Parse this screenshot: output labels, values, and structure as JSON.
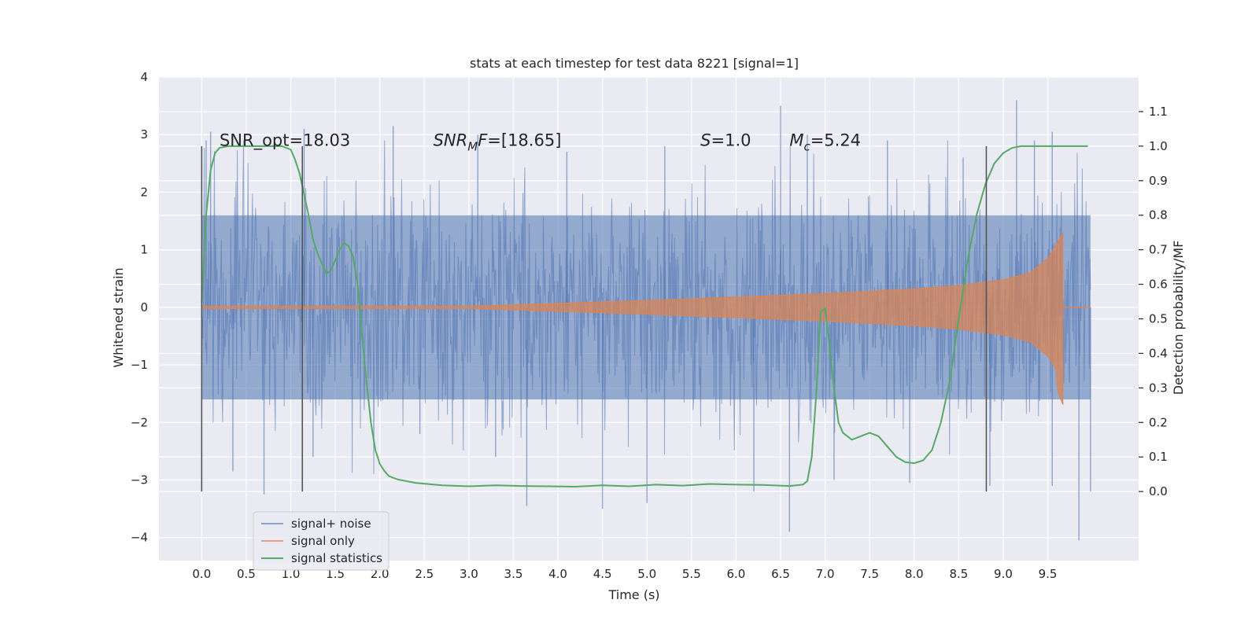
{
  "chart_data": {
    "type": "line",
    "title": "stats at each timestep for test data 8221 [signal=1]",
    "xlabel": "Time (s)",
    "ylabel": "Whitened strain",
    "y2label": "Detection probability/MF",
    "xlim": [
      -0.48,
      10.52
    ],
    "ylim": [
      -4.4,
      4.0
    ],
    "y2lim": [
      -0.2,
      1.2
    ],
    "xticks": [
      "0.0",
      "0.5",
      "1.0",
      "1.5",
      "2.0",
      "2.5",
      "3.0",
      "3.5",
      "4.0",
      "4.5",
      "5.0",
      "5.5",
      "6.0",
      "6.5",
      "7.0",
      "7.5",
      "8.0",
      "8.5",
      "9.0",
      "9.5"
    ],
    "yticks": [
      "−4",
      "−3",
      "−2",
      "−1",
      "0",
      "1",
      "2",
      "3",
      "4"
    ],
    "y2ticks": [
      "0.0",
      "0.1",
      "0.2",
      "0.3",
      "0.4",
      "0.5",
      "0.6",
      "0.7",
      "0.8",
      "0.9",
      "1.0",
      "1.1"
    ],
    "annotations": [
      {
        "text": "SNR_opt=18.03",
        "x": 0.2,
        "y": 2.9,
        "math": false
      },
      {
        "text": "SNR_MF=[18.65]",
        "x": 2.6,
        "y": 2.9,
        "math": true,
        "base": "SNR",
        "sub": "M",
        "rest": "F=[18.65]"
      },
      {
        "text": "S=1.0",
        "x": 5.6,
        "y": 2.9,
        "math": true,
        "base": "S",
        "sub": "",
        "rest": "=1.0"
      },
      {
        "text": "M_c=5.24",
        "x": 6.6,
        "y": 2.9,
        "math": true,
        "base": "M",
        "sub": "c",
        "rest": "=5.24"
      }
    ],
    "vlines": [
      {
        "x": 0.0,
        "ymin": -3.2,
        "ymax": 2.8
      },
      {
        "x": 1.13,
        "ymin": -3.2,
        "ymax": 2.8
      },
      {
        "x": 8.81,
        "ymin": -3.2,
        "ymax": 2.8
      }
    ],
    "legend": {
      "placement": "lower-left",
      "entries": [
        "signal+ noise",
        "signal only",
        "signal statistics"
      ]
    },
    "series": [
      {
        "name": "signal+ noise",
        "color": "#4c72b0",
        "kind": "noise",
        "x_range": [
          0.0,
          9.98
        ],
        "envelope": [
          -1.6,
          1.6
        ],
        "peaks": [
          {
            "x": 0.05,
            "y": 2.9
          },
          {
            "x": 0.1,
            "y": 3.05
          },
          {
            "x": 0.35,
            "y": -2.85
          },
          {
            "x": 0.7,
            "y": -3.25
          },
          {
            "x": 1.15,
            "y": 3.1
          },
          {
            "x": 1.25,
            "y": -2.6
          },
          {
            "x": 2.15,
            "y": 3.15
          },
          {
            "x": 2.45,
            "y": -2.2
          },
          {
            "x": 3.1,
            "y": 3.0
          },
          {
            "x": 3.3,
            "y": -2.6
          },
          {
            "x": 3.65,
            "y": -3.45
          },
          {
            "x": 4.1,
            "y": 2.7
          },
          {
            "x": 4.5,
            "y": -3.5
          },
          {
            "x": 5.0,
            "y": -3.4
          },
          {
            "x": 5.2,
            "y": 2.8
          },
          {
            "x": 6.2,
            "y": -3.2
          },
          {
            "x": 6.5,
            "y": 3.5
          },
          {
            "x": 6.6,
            "y": -3.9
          },
          {
            "x": 6.8,
            "y": 3.0
          },
          {
            "x": 7.1,
            "y": -3.0
          },
          {
            "x": 7.7,
            "y": 2.9
          },
          {
            "x": 7.95,
            "y": -3.05
          },
          {
            "x": 8.55,
            "y": 2.6
          },
          {
            "x": 8.85,
            "y": -3.1
          },
          {
            "x": 9.15,
            "y": 3.6
          },
          {
            "x": 9.35,
            "y": 2.9
          },
          {
            "x": 9.55,
            "y": 3.05
          },
          {
            "x": 9.55,
            "y": -3.1
          },
          {
            "x": 9.85,
            "y": -4.05
          },
          {
            "x": 9.98,
            "y": -3.2
          }
        ]
      },
      {
        "name": "signal only",
        "color": "#dd8452",
        "kind": "chirp",
        "x_range": [
          0.0,
          9.98
        ],
        "merger_x": 9.67,
        "amp_points": [
          [
            0.0,
            0.02
          ],
          [
            3.0,
            0.02
          ],
          [
            5.0,
            0.12
          ],
          [
            6.0,
            0.18
          ],
          [
            7.0,
            0.24
          ],
          [
            8.0,
            0.32
          ],
          [
            8.5,
            0.38
          ],
          [
            9.0,
            0.48
          ],
          [
            9.3,
            0.6
          ],
          [
            9.5,
            0.85
          ],
          [
            9.6,
            1.1
          ],
          [
            9.67,
            1.3
          ]
        ]
      },
      {
        "name": "signal statistics",
        "color": "#55a868",
        "axis": "right",
        "points": [
          [
            0.0,
            0.55
          ],
          [
            0.05,
            0.8
          ],
          [
            0.1,
            0.93
          ],
          [
            0.15,
            0.98
          ],
          [
            0.2,
            0.995
          ],
          [
            0.3,
            1.0
          ],
          [
            0.6,
            1.0
          ],
          [
            0.9,
            1.0
          ],
          [
            1.0,
            0.99
          ],
          [
            1.05,
            0.96
          ],
          [
            1.1,
            0.92
          ],
          [
            1.15,
            0.86
          ],
          [
            1.2,
            0.8
          ],
          [
            1.25,
            0.73
          ],
          [
            1.3,
            0.69
          ],
          [
            1.35,
            0.66
          ],
          [
            1.4,
            0.63
          ],
          [
            1.45,
            0.64
          ],
          [
            1.5,
            0.67
          ],
          [
            1.55,
            0.7
          ],
          [
            1.6,
            0.72
          ],
          [
            1.65,
            0.71
          ],
          [
            1.7,
            0.68
          ],
          [
            1.75,
            0.6
          ],
          [
            1.8,
            0.45
          ],
          [
            1.85,
            0.32
          ],
          [
            1.9,
            0.2
          ],
          [
            1.95,
            0.12
          ],
          [
            2.0,
            0.08
          ],
          [
            2.05,
            0.06
          ],
          [
            2.1,
            0.045
          ],
          [
            2.2,
            0.035
          ],
          [
            2.4,
            0.025
          ],
          [
            2.7,
            0.018
          ],
          [
            3.0,
            0.015
          ],
          [
            3.3,
            0.018
          ],
          [
            3.6,
            0.016
          ],
          [
            3.9,
            0.015
          ],
          [
            4.2,
            0.014
          ],
          [
            4.5,
            0.018
          ],
          [
            4.8,
            0.015
          ],
          [
            5.1,
            0.02
          ],
          [
            5.4,
            0.017
          ],
          [
            5.7,
            0.022
          ],
          [
            6.0,
            0.02
          ],
          [
            6.3,
            0.019
          ],
          [
            6.6,
            0.016
          ],
          [
            6.75,
            0.02
          ],
          [
            6.8,
            0.03
          ],
          [
            6.85,
            0.1
          ],
          [
            6.9,
            0.28
          ],
          [
            6.95,
            0.52
          ],
          [
            7.0,
            0.53
          ],
          [
            7.05,
            0.42
          ],
          [
            7.1,
            0.3
          ],
          [
            7.15,
            0.2
          ],
          [
            7.2,
            0.17
          ],
          [
            7.3,
            0.15
          ],
          [
            7.4,
            0.16
          ],
          [
            7.5,
            0.17
          ],
          [
            7.6,
            0.16
          ],
          [
            7.7,
            0.13
          ],
          [
            7.8,
            0.1
          ],
          [
            7.9,
            0.085
          ],
          [
            8.0,
            0.082
          ],
          [
            8.1,
            0.09
          ],
          [
            8.2,
            0.12
          ],
          [
            8.3,
            0.2
          ],
          [
            8.4,
            0.32
          ],
          [
            8.5,
            0.5
          ],
          [
            8.6,
            0.67
          ],
          [
            8.7,
            0.8
          ],
          [
            8.8,
            0.89
          ],
          [
            8.9,
            0.95
          ],
          [
            9.0,
            0.98
          ],
          [
            9.1,
            0.995
          ],
          [
            9.2,
            1.0
          ],
          [
            9.5,
            1.0
          ],
          [
            9.95,
            1.0
          ]
        ]
      }
    ]
  }
}
